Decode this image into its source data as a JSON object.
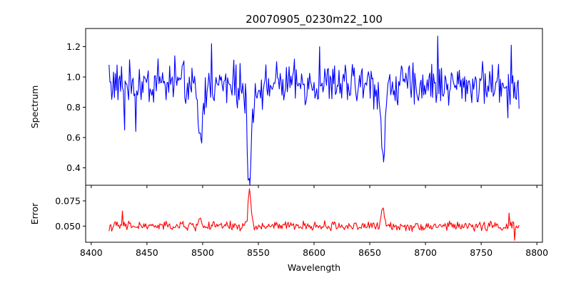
{
  "chart_data": [
    {
      "type": "line",
      "title": "20070905_0230m22_100",
      "xlabel": "",
      "ylabel": "Spectrum",
      "xlim": [
        8395,
        8805
      ],
      "ylim": [
        0.285,
        1.32
      ],
      "xticks": [
        8400,
        8450,
        8500,
        8550,
        8600,
        8650,
        8700,
        8750,
        8800
      ],
      "yticks": [
        0.4,
        0.6,
        0.8,
        1.0,
        1.2
      ],
      "ytick_labels": [
        "0.4",
        "0.6",
        "0.8",
        "1.0",
        "1.2"
      ],
      "grid": false,
      "series": [
        {
          "color": "#0000ff",
          "x_range": [
            8416,
            8784
          ],
          "baseline": 0.95,
          "absorption_lines": [
            {
              "center": 8498,
              "depth": 0.32,
              "width": 1.8
            },
            {
              "center": 8542,
              "depth": 0.62,
              "width": 1.6
            },
            {
              "center": 8662,
              "depth": 0.45,
              "width": 1.6
            }
          ],
          "noise_amplitude": 0.12,
          "sampled_points": [
            {
              "x": 8416,
              "y": 1.08
            },
            {
              "x": 8430,
              "y": 0.65
            },
            {
              "x": 8440,
              "y": 0.64
            },
            {
              "x": 8460,
              "y": 1.12
            },
            {
              "x": 8475,
              "y": 1.14
            },
            {
              "x": 8490,
              "y": 0.9
            },
            {
              "x": 8498,
              "y": 0.63
            },
            {
              "x": 8508,
              "y": 1.22
            },
            {
              "x": 8530,
              "y": 1.08
            },
            {
              "x": 8538,
              "y": 0.76
            },
            {
              "x": 8542,
              "y": 0.33
            },
            {
              "x": 8556,
              "y": 0.98
            },
            {
              "x": 8590,
              "y": 0.95
            },
            {
              "x": 8605,
              "y": 1.2
            },
            {
              "x": 8630,
              "y": 0.85
            },
            {
              "x": 8662,
              "y": 0.49
            },
            {
              "x": 8690,
              "y": 0.82
            },
            {
              "x": 8711,
              "y": 1.27
            },
            {
              "x": 8740,
              "y": 0.95
            },
            {
              "x": 8774,
              "y": 0.73
            },
            {
              "x": 8777,
              "y": 1.21
            },
            {
              "x": 8784,
              "y": 0.79
            }
          ]
        }
      ]
    },
    {
      "type": "line",
      "title": "",
      "xlabel": "Wavelength",
      "ylabel": "Error",
      "xlim": [
        8395,
        8805
      ],
      "ylim": [
        0.034,
        0.0905
      ],
      "xticks": [
        8400,
        8450,
        8500,
        8550,
        8600,
        8650,
        8700,
        8750,
        8800
      ],
      "yticks": [
        0.05,
        0.075
      ],
      "ytick_labels": [
        "0.050",
        "0.075"
      ],
      "grid": false,
      "series": [
        {
          "color": "#ff0000",
          "x_range": [
            8416,
            8784
          ],
          "baseline": 0.05,
          "noise_amplitude": 0.004,
          "peaks": [
            {
              "center": 8498,
              "height": 0.058
            },
            {
              "center": 8542,
              "height": 0.087
            },
            {
              "center": 8662,
              "height": 0.068
            }
          ],
          "sampled_points": [
            {
              "x": 8416,
              "y": 0.045
            },
            {
              "x": 8428,
              "y": 0.065
            },
            {
              "x": 8450,
              "y": 0.048
            },
            {
              "x": 8498,
              "y": 0.058
            },
            {
              "x": 8540,
              "y": 0.055
            },
            {
              "x": 8542,
              "y": 0.087
            },
            {
              "x": 8550,
              "y": 0.05
            },
            {
              "x": 8600,
              "y": 0.051
            },
            {
              "x": 8662,
              "y": 0.068
            },
            {
              "x": 8700,
              "y": 0.048
            },
            {
              "x": 8775,
              "y": 0.063
            },
            {
              "x": 8780,
              "y": 0.036
            },
            {
              "x": 8784,
              "y": 0.051
            }
          ]
        }
      ]
    }
  ]
}
